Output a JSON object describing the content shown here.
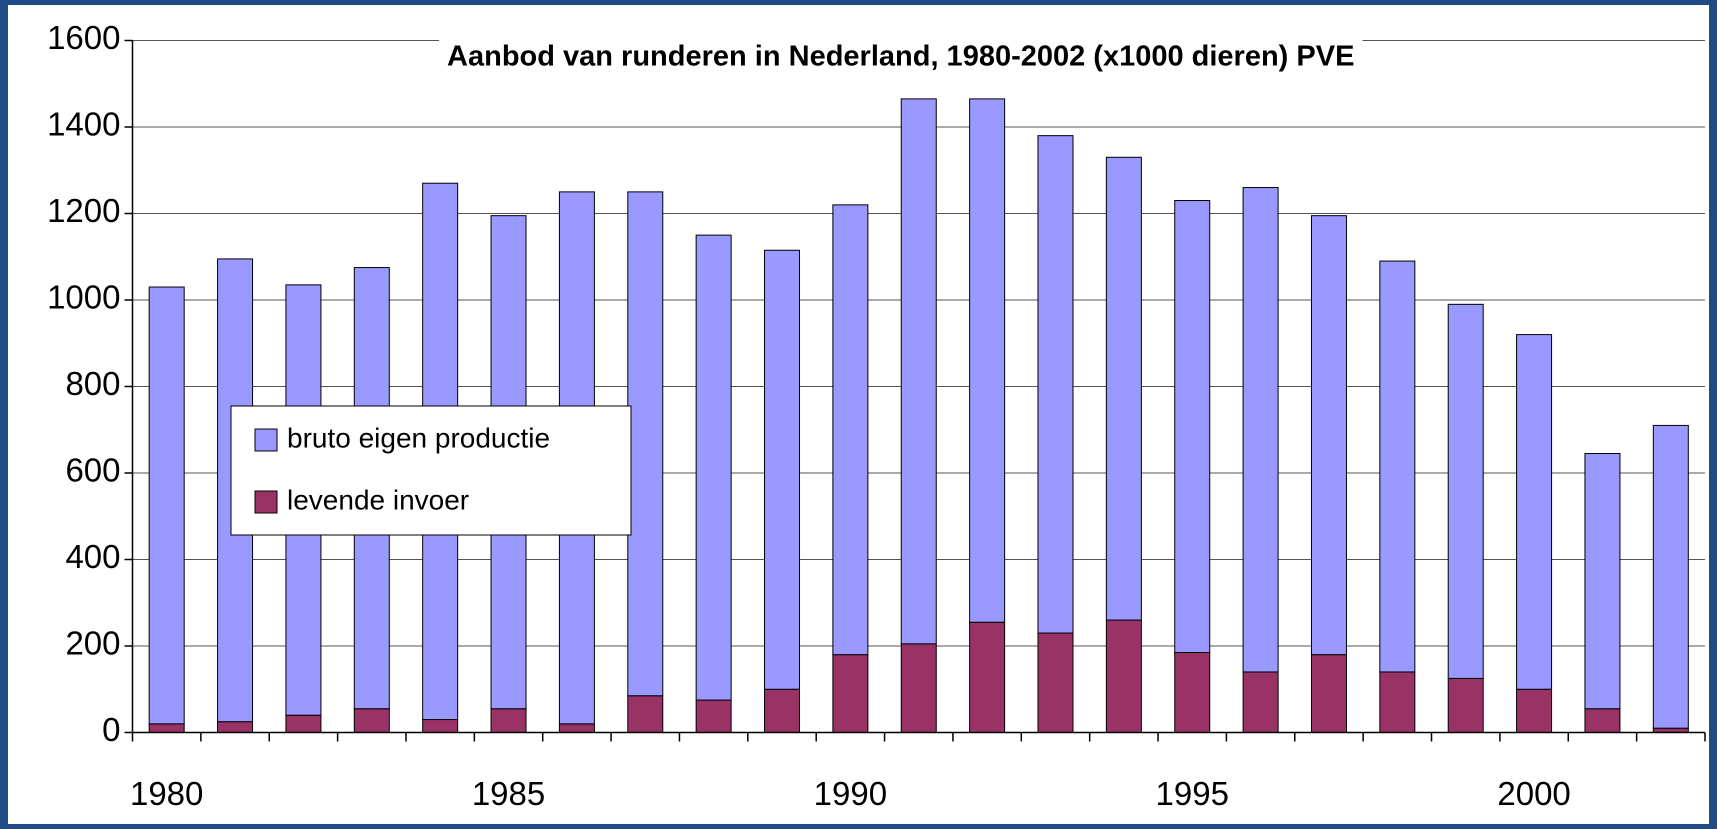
{
  "chart_data": {
    "type": "stacked_bar",
    "title": "Aanbod van runderen in Nederland, 1980-2002 (x1000 dieren) PVE",
    "categories": [
      1980,
      null,
      null,
      null,
      null,
      1985,
      null,
      null,
      null,
      null,
      1990,
      null,
      null,
      null,
      null,
      1995,
      null,
      null,
      null,
      null,
      2000,
      null,
      null
    ],
    "series": [
      {
        "name": "levende invoer",
        "color": "#993366",
        "values": [
          20,
          25,
          40,
          55,
          30,
          55,
          20,
          85,
          75,
          100,
          180,
          205,
          255,
          230,
          260,
          185,
          140,
          180,
          140,
          125,
          100,
          55,
          10
        ]
      },
      {
        "name": "bruto eigen productie",
        "color": "#9999ff",
        "values": [
          1010,
          1070,
          995,
          1020,
          1240,
          1140,
          1230,
          1165,
          1075,
          1015,
          1040,
          1260,
          1210,
          1150,
          1070,
          1045,
          1120,
          1015,
          950,
          865,
          820,
          590,
          700
        ]
      }
    ],
    "ylim": [
      0,
      1600
    ],
    "yticks": [
      0,
      200,
      400,
      600,
      800,
      1000,
      1200,
      1400,
      1600
    ],
    "grid": true,
    "legend": "center left"
  }
}
